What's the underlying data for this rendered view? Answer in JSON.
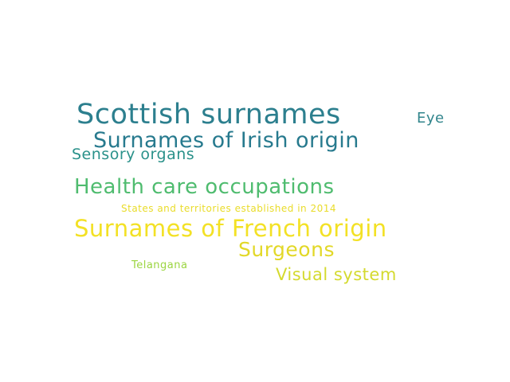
{
  "word_cloud": {
    "words": [
      {
        "text": "Scottish surnames",
        "color": "#2c7f8e"
      },
      {
        "text": "Eye",
        "color": "#31858c"
      },
      {
        "text": "Surnames of Irish origin",
        "color": "#277a8e"
      },
      {
        "text": "Sensory organs",
        "color": "#2a918a"
      },
      {
        "text": "Health care occupations",
        "color": "#4fbc6f"
      },
      {
        "text": "States and territories established in 2014",
        "color": "#e9dc2a"
      },
      {
        "text": "Surnames of French origin",
        "color": "#f3e125"
      },
      {
        "text": "Surgeons",
        "color": "#e2d827"
      },
      {
        "text": "Telangana",
        "color": "#9bd540"
      },
      {
        "text": "Visual system",
        "color": "#d4da2e"
      }
    ]
  }
}
